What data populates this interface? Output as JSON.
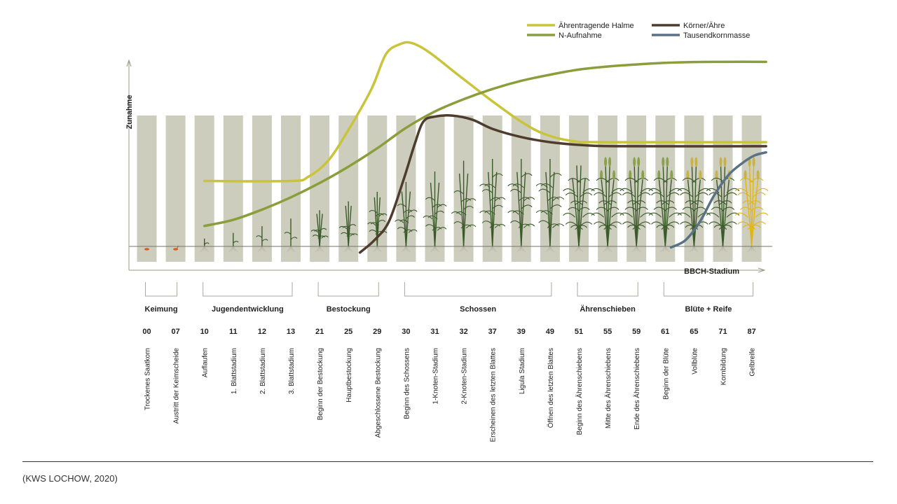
{
  "colors": {
    "stage_bar": "#cdcdbe",
    "axis": "#999988",
    "ground": "#777766",
    "plant_green": "#3a5a2a",
    "seed": "#d4601e",
    "ripe_plant": "#e3b515"
  },
  "legend": [
    {
      "label": "Ährentragende Halme",
      "color": "#c9c43a"
    },
    {
      "label": "N-Aufnahme",
      "color": "#8a9e3c"
    },
    {
      "label": "Körner/Ähre",
      "color": "#4e3d2e"
    },
    {
      "label": "Tausendkornmasse",
      "color": "#5a7286"
    }
  ],
  "axes": {
    "y_label": "Zunahme",
    "x_label": "BBCH-Stadium"
  },
  "source": "(KWS LOCHOW, 2020)",
  "chart_data": {
    "type": "line",
    "title": "",
    "xlabel": "BBCH-Stadium",
    "ylabel": "Zunahme",
    "x_scale": "categorical",
    "y_unit": "relative (0 = ground line, 100 = top of axis)",
    "categories": [
      "00",
      "07",
      "10",
      "11",
      "12",
      "13",
      "21",
      "25",
      "29",
      "30",
      "31",
      "32",
      "37",
      "39",
      "49",
      "51",
      "55",
      "59",
      "61",
      "65",
      "71",
      "87"
    ],
    "stage_names": [
      "Trockenes Saatkorn",
      "Austritt der Keimscheide",
      "Auflaufen",
      "1. Blattstadium",
      "2. Blattstadium",
      "3. Blattstadium",
      "Beginn der Bestockung",
      "Hauptbestockung",
      "Abgeschlossene Bestockung",
      "Beginn des Schossens",
      "1-Knoten-Stadium",
      "2-Knoten-Stadium",
      "Erscheinen des letzten Blattes",
      "Ligula Stadium",
      "Öffnen des letzten Blattes",
      "Beginn des Ährenschiebens",
      "Mitte des Ährenschiebens",
      "Ende des Ährenschiebens",
      "Beginn der Blüte",
      "Vollblüte",
      "Kornbildung",
      "Gelbreife"
    ],
    "phases": [
      {
        "name": "Keimung",
        "from": 0,
        "to": 1
      },
      {
        "name": "Jugendentwicklung",
        "from": 2,
        "to": 5
      },
      {
        "name": "Bestockung",
        "from": 6,
        "to": 8
      },
      {
        "name": "Schossen",
        "from": 9,
        "to": 14
      },
      {
        "name": "Ährenschieben",
        "from": 15,
        "to": 17
      },
      {
        "name": "Blüte + Reife",
        "from": 18,
        "to": 21
      }
    ],
    "series": [
      {
        "name": "Ährentragende Halme",
        "color": "#c9c43a",
        "points": [
          [
            2,
            32
          ],
          [
            5,
            32
          ],
          [
            5.6,
            34
          ],
          [
            6.3,
            42
          ],
          [
            7,
            57
          ],
          [
            7.8,
            77
          ],
          [
            8.3,
            94
          ],
          [
            8.8,
            99
          ],
          [
            9.2,
            99.5
          ],
          [
            9.8,
            95
          ],
          [
            10.8,
            84
          ],
          [
            12,
            71
          ],
          [
            13,
            61
          ],
          [
            13.8,
            55
          ],
          [
            14.8,
            51.5
          ],
          [
            16,
            51
          ],
          [
            21.5,
            51
          ]
        ]
      },
      {
        "name": "N-Aufnahme",
        "color": "#8a9e3c",
        "points": [
          [
            2,
            10
          ],
          [
            3,
            13
          ],
          [
            4,
            18
          ],
          [
            5,
            24
          ],
          [
            6,
            31
          ],
          [
            7,
            39
          ],
          [
            8,
            48
          ],
          [
            9,
            58
          ],
          [
            10,
            66
          ],
          [
            11,
            72
          ],
          [
            12,
            77
          ],
          [
            13,
            81
          ],
          [
            14,
            84
          ],
          [
            15,
            86.5
          ],
          [
            16,
            88
          ],
          [
            17,
            89
          ],
          [
            18,
            89.8
          ],
          [
            19,
            90.2
          ],
          [
            20,
            90.3
          ],
          [
            21.5,
            90.3
          ]
        ]
      },
      {
        "name": "Körner/Ähre",
        "color": "#4e3d2e",
        "points": [
          [
            7.4,
            -3
          ],
          [
            7.9,
            3
          ],
          [
            8.4,
            12
          ],
          [
            8.9,
            32
          ],
          [
            9.3,
            50
          ],
          [
            9.6,
            61
          ],
          [
            10,
            63.5
          ],
          [
            10.6,
            64
          ],
          [
            11.3,
            62
          ],
          [
            12,
            57.5
          ],
          [
            13,
            53.5
          ],
          [
            14,
            51
          ],
          [
            15.2,
            49.5
          ],
          [
            16.5,
            49
          ],
          [
            21.5,
            49
          ]
        ]
      },
      {
        "name": "Tausendkornmasse",
        "color": "#5a7286",
        "points": [
          [
            18.2,
            -0.5
          ],
          [
            18.7,
            3
          ],
          [
            19.2,
            12
          ],
          [
            19.7,
            25
          ],
          [
            20.2,
            35
          ],
          [
            20.7,
            41
          ],
          [
            21.1,
            44.5
          ],
          [
            21.5,
            46
          ]
        ]
      }
    ]
  }
}
